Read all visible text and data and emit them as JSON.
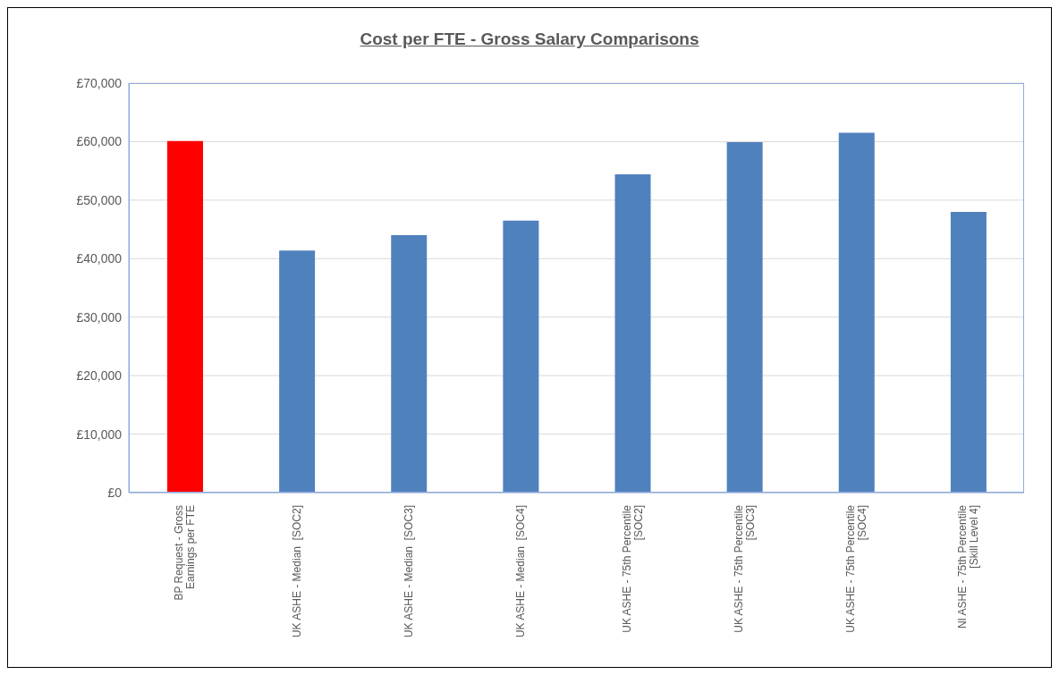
{
  "chart_data": {
    "type": "bar",
    "title": "Cost per FTE - Gross Salary Comparisons",
    "categories": [
      "BP Request - Gross Earnings per FTE",
      "UK ASHE - Median  [SOC2]",
      "UK ASHE - Median  [SOC3]",
      "UK ASHE - Median  [SOC4]",
      "UK ASHE - 75th Percentile [SOC2]",
      "UK ASHE - 75th Percentile [SOC3]",
      "UK ASHE - 75th Percentile [SOC4]",
      "NI ASHE - 75th Percentile [Skill Level 4]"
    ],
    "values": [
      60100,
      41400,
      44000,
      46500,
      54400,
      59900,
      61500,
      48000
    ],
    "colors": [
      "#ff0000",
      "#4f81bd",
      "#4f81bd",
      "#4f81bd",
      "#4f81bd",
      "#4f81bd",
      "#4f81bd",
      "#4f81bd"
    ],
    "ylim": [
      0,
      70000
    ],
    "yticks": [
      {
        "value": 0,
        "label": "£0"
      },
      {
        "value": 10000,
        "label": "£10,000"
      },
      {
        "value": 20000,
        "label": "£20,000"
      },
      {
        "value": 30000,
        "label": "£30,000"
      },
      {
        "value": 40000,
        "label": "£40,000"
      },
      {
        "value": 50000,
        "label": "£50,000"
      },
      {
        "value": 60000,
        "label": "£60,000"
      },
      {
        "value": 70000,
        "label": "£70,000"
      }
    ],
    "grid": "y",
    "legend": false
  }
}
